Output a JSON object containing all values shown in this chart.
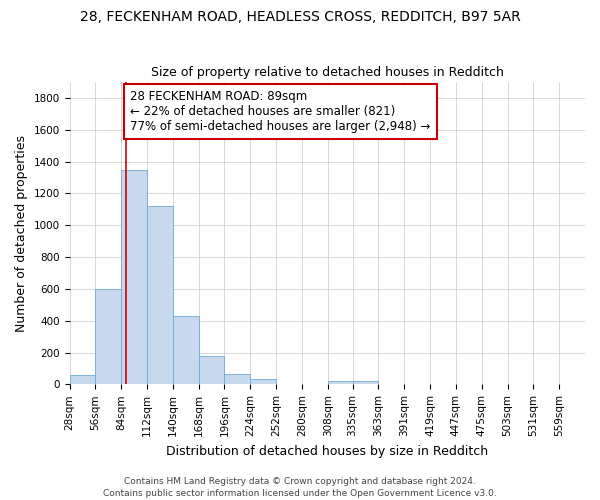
{
  "title": "28, FECKENHAM ROAD, HEADLESS CROSS, REDDITCH, B97 5AR",
  "subtitle": "Size of property relative to detached houses in Redditch",
  "xlabel": "Distribution of detached houses by size in Redditch",
  "ylabel": "Number of detached properties",
  "bins": [
    28,
    56,
    84,
    112,
    140,
    168,
    196,
    224,
    252,
    280,
    308,
    335,
    363,
    391,
    419,
    447,
    475,
    503,
    531,
    559,
    587
  ],
  "counts": [
    60,
    600,
    1350,
    1120,
    430,
    175,
    65,
    35,
    0,
    0,
    20,
    20,
    0,
    0,
    0,
    0,
    0,
    0,
    0,
    0
  ],
  "bar_facecolor": "#c8d9ee",
  "bar_edgecolor": "#6baed6",
  "property_size": 89,
  "property_line_color": "#cc0000",
  "annotation_text": "28 FECKENHAM ROAD: 89sqm\n← 22% of detached houses are smaller (821)\n77% of semi-detached houses are larger (2,948) →",
  "annotation_box_color": "#cc0000",
  "annotation_text_color": "#000000",
  "ylim": [
    0,
    1900
  ],
  "yticks": [
    0,
    200,
    400,
    600,
    800,
    1000,
    1200,
    1400,
    1600,
    1800
  ],
  "footer_line1": "Contains HM Land Registry data © Crown copyright and database right 2024.",
  "footer_line2": "Contains public sector information licensed under the Open Government Licence v3.0.",
  "background_color": "#ffffff",
  "grid_color": "#c8c8c8",
  "title_fontsize": 10,
  "subtitle_fontsize": 9,
  "axis_label_fontsize": 9,
  "tick_fontsize": 7.5,
  "annotation_fontsize": 8.5,
  "footer_fontsize": 6.5
}
